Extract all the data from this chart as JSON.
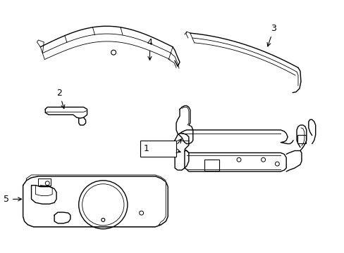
{
  "background_color": "#ffffff",
  "line_color": "#000000",
  "figsize": [
    4.89,
    3.6
  ],
  "dpi": 100,
  "lw_main": 1.0,
  "lw_thin": 0.6,
  "lw_thick": 1.4
}
